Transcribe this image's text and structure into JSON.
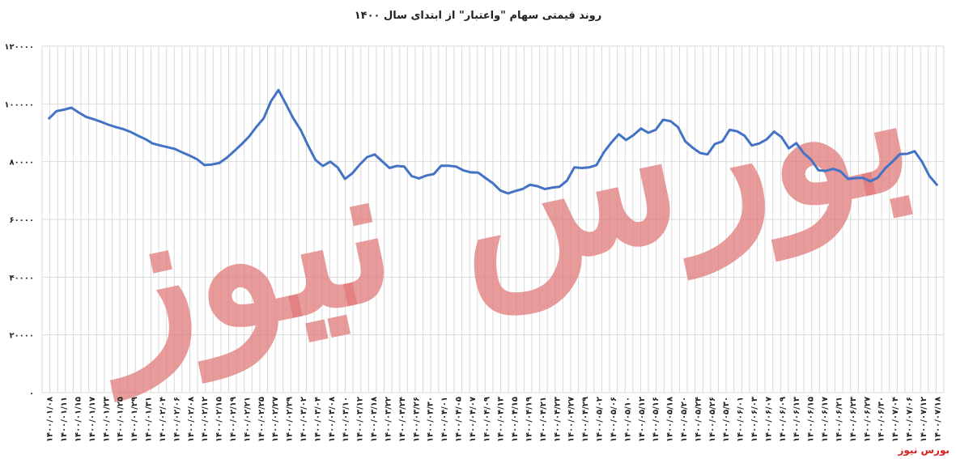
{
  "watermark_text": "بورس نیوز",
  "footer_brand": "بورس نیوز",
  "colors": {
    "line": "#4472c4",
    "grid": "#d9d9d9",
    "watermark": "#e07a7a"
  },
  "chart_data": {
    "type": "line",
    "title": "روند قیمتی سهام \"واعتبار\" از ابتدای سال ۱۴۰۰",
    "xlabel": "",
    "ylabel": "",
    "ylim": [
      0,
      120000
    ],
    "y_ticks": [
      0,
      20000,
      40000,
      60000,
      80000,
      100000,
      120000
    ],
    "y_tick_labels": [
      "۰",
      "۲۰۰۰۰",
      "۴۰۰۰۰",
      "۶۰۰۰۰",
      "۸۰۰۰۰",
      "۱۰۰۰۰۰",
      "۱۲۰۰۰۰"
    ],
    "grid": true,
    "x_labels": [
      "۱۴۰۰/۰۱/۰۸",
      "۱۴۰۰/۰۱/۱۱",
      "۱۴۰۰/۰۱/۱۵",
      "۱۴۰۰/۰۱/۱۷",
      "۱۴۰۰/۰۱/۲۳",
      "۱۴۰۰/۰۱/۲۵",
      "۱۴۰۰/۰۱/۲۹",
      "۱۴۰۰/۰۱/۳۱",
      "۱۴۰۰/۰۲/۰۴",
      "۱۴۰۰/۰۲/۰۶",
      "۱۴۰۰/۰۲/۰۸",
      "۱۴۰۰/۰۲/۱۲",
      "۱۴۰۰/۰۲/۱۵",
      "۱۴۰۰/۰۲/۱۹",
      "۱۴۰۰/۰۲/۲۱",
      "۱۴۰۰/۰۲/۲۵",
      "۱۴۰۰/۰۲/۲۷",
      "۱۴۰۰/۰۲/۲۹",
      "۱۴۰۰/۰۳/۰۲",
      "۱۴۰۰/۰۳/۰۴",
      "۱۴۰۰/۰۳/۰۸",
      "۱۴۰۰/۰۳/۱۰",
      "۱۴۰۰/۰۳/۱۲",
      "۱۴۰۰/۰۳/۱۸",
      "۱۴۰۰/۰۳/۲۲",
      "۱۴۰۰/۰۳/۲۴",
      "۱۴۰۰/۰۳/۲۶",
      "۱۴۰۰/۰۳/۳۰",
      "۱۴۰۰/۰۴/۰۱",
      "۱۴۰۰/۰۴/۰۵",
      "۱۴۰۰/۰۴/۰۷",
      "۱۴۰۰/۰۴/۰۹",
      "۱۴۰۰/۰۴/۱۳",
      "۱۴۰۰/۰۴/۱۵",
      "۱۴۰۰/۰۴/۱۹",
      "۱۴۰۰/۰۴/۲۱",
      "۱۴۰۰/۰۴/۲۳",
      "۱۴۰۰/۰۴/۲۷",
      "۱۴۰۰/۰۴/۲۹",
      "۱۴۰۰/۰۵/۰۲",
      "۱۴۰۰/۰۵/۰۶",
      "۱۴۰۰/۰۵/۱۰",
      "۱۴۰۰/۰۵/۱۲",
      "۱۴۰۰/۰۵/۱۶",
      "۱۴۰۰/۰۵/۱۸",
      "۱۴۰۰/۰۵/۲۰",
      "۱۴۰۰/۰۵/۲۴",
      "۱۴۰۰/۰۵/۲۶",
      "۱۴۰۰/۰۵/۳۰",
      "۱۴۰۰/۰۶/۰۱",
      "۱۴۰۰/۰۶/۰۳",
      "۱۴۰۰/۰۶/۰۷",
      "۱۴۰۰/۰۶/۰۹",
      "۱۴۰۰/۰۶/۱۳",
      "۱۴۰۰/۰۶/۱۵",
      "۱۴۰۰/۰۶/۱۷",
      "۱۴۰۰/۰۶/۲۱",
      "۱۴۰۰/۰۶/۲۳",
      "۱۴۰۰/۰۶/۲۷",
      "۱۴۰۰/۰۶/۳۰",
      "۱۴۰۰/۰۷/۰۴",
      "۱۴۰۰/۰۷/۰۶",
      "۱۴۰۰/۰۷/۱۲",
      "۱۴۰۰/۰۷/۱۸"
    ],
    "series": [
      {
        "name": "",
        "x_start": 0,
        "x_end": 63,
        "values": [
          95000,
          97500,
          98000,
          98700,
          97000,
          95500,
          94700,
          93800,
          92800,
          92000,
          91300,
          90300,
          89000,
          87800,
          86300,
          85600,
          85000,
          84400,
          83200,
          82100,
          80800,
          78800,
          79000,
          79500,
          81300,
          83600,
          86000,
          88600,
          92000,
          95000,
          101000,
          104800,
          100000,
          95000,
          91000,
          85600,
          80600,
          78500,
          80000,
          78000,
          74000,
          76000,
          79000,
          81600,
          82500,
          80200,
          77800,
          78500,
          78300,
          75000,
          74200,
          75200,
          75700,
          78600,
          78600,
          78300,
          77000,
          76300,
          76200,
          74300,
          72500,
          70000,
          69000,
          69800,
          70500,
          72000,
          71500,
          70500,
          71000,
          71300,
          73400,
          78000,
          77800,
          78000,
          78800,
          83300,
          86600,
          89500,
          87500,
          89200,
          91500,
          90000,
          91000,
          94500,
          94000,
          92000,
          87000,
          84800,
          83000,
          82500,
          86100,
          87000,
          91000,
          90500,
          89000,
          85600,
          86300,
          87700,
          90400,
          88500,
          84600,
          86400,
          83000,
          80700,
          77000,
          76800,
          77500,
          76600,
          74000,
          74300,
          74400,
          73200,
          74400,
          77600,
          80000,
          82600,
          82700,
          83600,
          80000,
          75000,
          72000
        ]
      }
    ]
  }
}
